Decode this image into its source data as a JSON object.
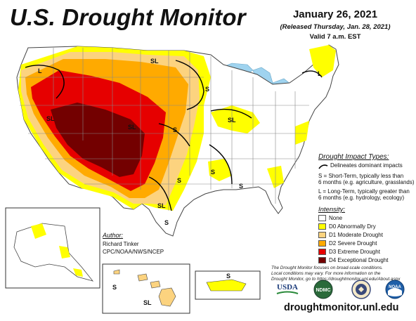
{
  "header": {
    "title": "U.S. Drought Monitor",
    "date": "January 26, 2021",
    "released": "(Released Thursday, Jan. 28, 2021)",
    "valid": "Valid 7 a.m. EST"
  },
  "impact_legend": {
    "title": "Drought Impact Types:",
    "delineates": "Delineates dominant impacts",
    "short_term_1": "S = Short-Term, typically less than",
    "short_term_2": "6 months (e.g. agriculture, grasslands)",
    "long_term_1": "L = Long-Term, typically greater than",
    "long_term_2": "6 months (e.g. hydrology, ecology)"
  },
  "intensity_legend": {
    "title": "Intensity:",
    "items": [
      {
        "label": "None",
        "color": "#ffffff"
      },
      {
        "label": "D0 Abnormally Dry",
        "color": "#ffff00"
      },
      {
        "label": "D1 Moderate Drought",
        "color": "#fcd37f"
      },
      {
        "label": "D2 Severe Drought",
        "color": "#ffaa00"
      },
      {
        "label": "D3 Extreme Drought",
        "color": "#e60000"
      },
      {
        "label": "D4 Exceptional Drought",
        "color": "#730000"
      }
    ]
  },
  "author": {
    "title": "Author:",
    "name": "Richard Tinker",
    "org": "CPC/NOAA/NWS/NCEP"
  },
  "disclaimer": {
    "line1": "The Drought Monitor focuses on broad-scale conditions.",
    "line2": "Local conditions may vary. For more information on the",
    "line3": "Drought Monitor, go to https://droughtmonitor.unl.edu/About.aspx"
  },
  "logos": {
    "usda": "USDA",
    "ndmc": "NDMC",
    "noaa": "NOAA"
  },
  "url": "droughtmonitor.unl.edu",
  "map_labels": {
    "L": "L",
    "S": "S",
    "SL": "SL"
  },
  "colors": {
    "water": "#9fd3ef",
    "state_border": "#888888",
    "d0": "#ffff00",
    "d1": "#fcd37f",
    "d2": "#ffaa00",
    "d3": "#e60000",
    "d4": "#730000"
  }
}
